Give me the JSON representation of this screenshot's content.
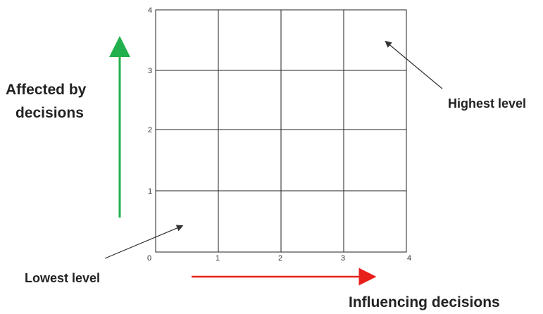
{
  "grid": {
    "x_ticks": [
      "0",
      "1",
      "2",
      "3",
      "4"
    ],
    "y_ticks": [
      "0",
      "1",
      "2",
      "3",
      "4"
    ],
    "line_color": "#222222"
  },
  "labels": {
    "y_axis": {
      "line1": "Affected by",
      "line2": "decisions"
    },
    "x_axis": "Influencing decisions",
    "highest": "Highest level",
    "lowest": "Lowest level"
  },
  "arrows": {
    "vertical_color": "#22b04c",
    "horizontal_color": "#e8201c",
    "pointer_color": "#333333"
  }
}
